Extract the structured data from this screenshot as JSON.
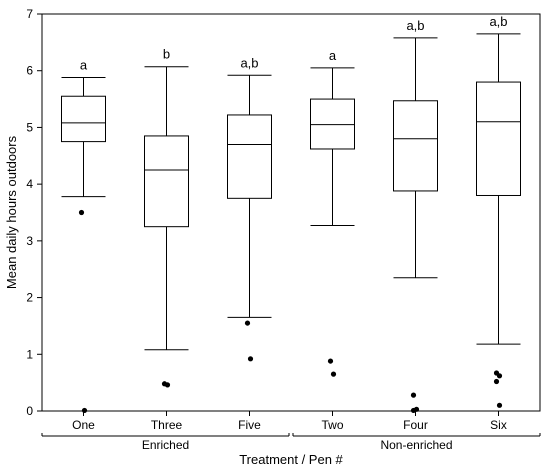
{
  "chart_data": {
    "type": "box",
    "ylabel": "Mean daily hours outdoors",
    "xlabel": "Treatment / Pen #",
    "ylim": [
      0,
      7
    ],
    "yticks": [
      0,
      1,
      2,
      3,
      4,
      5,
      6,
      7
    ],
    "grid": false,
    "categories": [
      "One",
      "Three",
      "Five",
      "Two",
      "Four",
      "Six"
    ],
    "groups": [
      {
        "label": "Enriched",
        "categories": [
          "One",
          "Three",
          "Five"
        ]
      },
      {
        "label": "Non-enriched",
        "categories": [
          "Two",
          "Four",
          "Six"
        ]
      }
    ],
    "boxes": [
      {
        "name": "One",
        "whisker_low": 3.78,
        "q1": 4.75,
        "median": 5.08,
        "q3": 5.55,
        "whisker_high": 5.88,
        "outliers": [
          3.5,
          0.01
        ],
        "letter": "a"
      },
      {
        "name": "Three",
        "whisker_low": 1.08,
        "q1": 3.25,
        "median": 4.25,
        "q3": 4.85,
        "whisker_high": 6.07,
        "outliers": [
          0.48,
          0.46
        ],
        "letter": "b"
      },
      {
        "name": "Five",
        "whisker_low": 1.65,
        "q1": 3.75,
        "median": 4.7,
        "q3": 5.22,
        "whisker_high": 5.92,
        "outliers": [
          1.55,
          0.92
        ],
        "letter": "a,b"
      },
      {
        "name": "Two",
        "whisker_low": 3.27,
        "q1": 4.62,
        "median": 5.05,
        "q3": 5.5,
        "whisker_high": 6.05,
        "outliers": [
          0.88,
          0.65
        ],
        "letter": "a"
      },
      {
        "name": "Four",
        "whisker_low": 2.35,
        "q1": 3.88,
        "median": 4.8,
        "q3": 5.47,
        "whisker_high": 6.58,
        "outliers": [
          0.28,
          0.03,
          0.01
        ],
        "letter": "a,b"
      },
      {
        "name": "Six",
        "whisker_low": 1.18,
        "q1": 3.8,
        "median": 5.1,
        "q3": 5.8,
        "whisker_high": 6.65,
        "outliers": [
          0.67,
          0.62,
          0.52,
          0.1
        ],
        "letter": "a,b"
      }
    ]
  }
}
